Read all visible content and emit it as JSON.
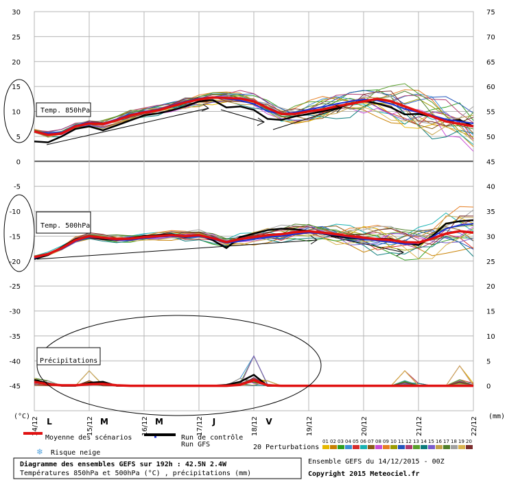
{
  "chart_data": {
    "type": "line",
    "x_labels": [
      "14/12",
      "15/12",
      "16/12",
      "17/12",
      "18/12",
      "19/12",
      "20/12",
      "21/12",
      "22/12"
    ],
    "day_letters": [
      "L",
      "M",
      "M",
      "J",
      "V"
    ],
    "left_axis": {
      "unit": "(°C)",
      "range": [
        -50,
        30
      ],
      "ticks": [
        30,
        25,
        20,
        15,
        10,
        5,
        0,
        -5,
        -10,
        -15,
        -20,
        -25,
        -30,
        -35,
        -40,
        -45
      ]
    },
    "right_axis": {
      "unit": "(mm)",
      "ticks": [
        75,
        70,
        65,
        60,
        55,
        50,
        45,
        40,
        35,
        30,
        25,
        20,
        15,
        10,
        5,
        0
      ]
    },
    "panels": {
      "t850": {
        "label": "Temp. 850hPa",
        "x_days": [
          0,
          0.25,
          0.5,
          0.75,
          1,
          1.25,
          1.5,
          1.75,
          2,
          2.25,
          2.5,
          2.75,
          3,
          3.25,
          3.5,
          3.75,
          4,
          4.25,
          4.5,
          4.75,
          5,
          5.25,
          5.5,
          5.75,
          6,
          6.25,
          6.5,
          6.75,
          7,
          7.25,
          7.5,
          7.75,
          8
        ],
        "mean": [
          6,
          5.3,
          5.6,
          7,
          7.6,
          7.5,
          8.2,
          9.2,
          9.8,
          10.2,
          11,
          11.8,
          12.4,
          12.8,
          12.7,
          12.6,
          12,
          10.7,
          9.5,
          9.5,
          10,
          10.4,
          11,
          11.5,
          12,
          12.5,
          12,
          11,
          10,
          9,
          8,
          7.5,
          7
        ],
        "gfs": [
          4,
          3.8,
          5,
          6.5,
          7,
          6.2,
          7.2,
          8.2,
          9.2,
          9.6,
          10.2,
          11,
          12,
          12.3,
          10.8,
          11,
          10.3,
          8.5,
          8.3,
          9,
          9.5,
          10,
          10.6,
          11.5,
          12.2,
          11.6,
          10.8,
          9.4,
          9.5,
          9,
          8,
          8.3,
          7
        ],
        "control": [
          6,
          5.6,
          5.8,
          7.2,
          7.8,
          7.6,
          8.4,
          9.4,
          10,
          10.4,
          11.2,
          12,
          12.6,
          12.9,
          12.5,
          12.2,
          11.5,
          10,
          9.6,
          9.8,
          10.4,
          10.9,
          11.5,
          12,
          12.4,
          12.2,
          11.5,
          10.5,
          9.8,
          9.2,
          8.4,
          8,
          7.6
        ],
        "spread": [
          0.4,
          0.6,
          0.8,
          0.8,
          0.8,
          0.9,
          0.9,
          1,
          1,
          1.1,
          1.1,
          1.2,
          1.2,
          1.3,
          1.3,
          1.4,
          1.5,
          1.6,
          1.6,
          1.8,
          2,
          2.2,
          2.5,
          2.8,
          3,
          3.3,
          3.6,
          3.9,
          4.2,
          4.5,
          4.8,
          5,
          5.2
        ]
      },
      "t500": {
        "label": "Temp. 500hPa",
        "x_days": [
          0,
          0.25,
          0.5,
          0.75,
          1,
          1.25,
          1.5,
          1.75,
          2,
          2.25,
          2.5,
          2.75,
          3,
          3.25,
          3.5,
          3.75,
          4,
          4.25,
          4.5,
          4.75,
          5,
          5.25,
          5.5,
          5.75,
          6,
          6.25,
          6.5,
          6.75,
          7,
          7.25,
          7.5,
          7.75,
          8
        ],
        "mean": [
          -19.2,
          -18.6,
          -17.4,
          -15.8,
          -15,
          -15.3,
          -15.6,
          -15.5,
          -15.2,
          -15,
          -14.8,
          -15,
          -14.8,
          -15.4,
          -16.2,
          -15.6,
          -15.2,
          -14.8,
          -14.6,
          -14.2,
          -14,
          -14.3,
          -14.6,
          -15,
          -15.3,
          -15.6,
          -15.8,
          -16.2,
          -16.3,
          -15.5,
          -14.5,
          -14,
          -14.3
        ],
        "gfs": [
          -19.6,
          -18.8,
          -17.2,
          -15.6,
          -15.2,
          -15.6,
          -15.8,
          -15.4,
          -15,
          -14.8,
          -14.6,
          -15.2,
          -14.8,
          -15.8,
          -17.4,
          -15.2,
          -14.5,
          -13.8,
          -13.5,
          -13.6,
          -14,
          -14.5,
          -15,
          -15.4,
          -15.6,
          -15.5,
          -15.6,
          -16.4,
          -16.8,
          -15,
          -12.5,
          -12,
          -11.8
        ],
        "control": [
          -19.4,
          -18.6,
          -17.6,
          -16,
          -15.2,
          -15.4,
          -15.8,
          -15.8,
          -15.4,
          -15.2,
          -15,
          -15.2,
          -15,
          -15.6,
          -16.4,
          -16,
          -15.6,
          -15.2,
          -15,
          -14.6,
          -14.3,
          -14.5,
          -14.8,
          -15.2,
          -15.6,
          -15.9,
          -16.2,
          -16.6,
          -16.4,
          -15.2,
          -13.5,
          -12.8,
          -12.5
        ],
        "spread": [
          0.3,
          0.4,
          0.5,
          0.6,
          0.7,
          0.7,
          0.8,
          0.8,
          0.9,
          0.9,
          1,
          1,
          1,
          1.1,
          1.2,
          1.3,
          1.4,
          1.5,
          1.6,
          1.7,
          1.8,
          2,
          2.2,
          2.4,
          2.6,
          2.9,
          3.2,
          3.5,
          3.8,
          4,
          4.2,
          4.4,
          4.6
        ]
      },
      "precip": {
        "label": "Précipitations",
        "x_days": [
          0,
          0.25,
          0.5,
          0.75,
          1,
          1.25,
          1.5,
          1.75,
          2,
          2.25,
          2.5,
          2.75,
          3,
          3.25,
          3.5,
          3.75,
          4,
          4.25,
          4.5,
          4.75,
          5,
          5.25,
          5.5,
          5.75,
          6,
          6.25,
          6.5,
          6.75,
          7,
          7.25,
          7.5,
          7.75,
          8
        ],
        "mean_mm": [
          0.8,
          0.3,
          0.1,
          0.1,
          0.3,
          0.4,
          0.1,
          0,
          0,
          0,
          0,
          0,
          0,
          0,
          0,
          0.2,
          1.1,
          0.1,
          0,
          0,
          0,
          0,
          0,
          0,
          0,
          0,
          0,
          0,
          0,
          0,
          0,
          0,
          0
        ],
        "gfs_mm": [
          1.2,
          0.5,
          0,
          0,
          0.6,
          0.8,
          0,
          0,
          0,
          0,
          0,
          0,
          0,
          0,
          0.2,
          0.8,
          2.2,
          0,
          0,
          0,
          0,
          0,
          0,
          0,
          0,
          0,
          0,
          0,
          0,
          0,
          0,
          0,
          0
        ],
        "member_peak_mm": [
          1.5,
          1,
          0,
          0,
          3,
          0.5,
          0,
          0,
          0,
          0,
          0,
          0,
          0,
          0,
          0,
          1.5,
          6,
          1,
          0,
          0,
          0,
          0,
          0,
          0,
          0,
          0,
          0,
          3,
          0.5,
          0,
          0,
          4,
          0.5
        ]
      }
    },
    "member_colors": [
      "#e6b800",
      "#c98000",
      "#2d9e1e",
      "#3b8fd6",
      "#d62c2c",
      "#17b1b1",
      "#8a5a17",
      "#c94dd6",
      "#e67e22",
      "#9b9b00",
      "#2255bb",
      "#b03a6f",
      "#5aa02c",
      "#0c7c7c",
      "#7a5ccc",
      "#c2a24a",
      "#4f7f2a",
      "#a0a0a0",
      "#d9b34e",
      "#7c2d2d"
    ]
  },
  "annotations": {
    "legend_ensemble_mean": "Moyenne des scénarios",
    "legend_control": "Run de contrôle",
    "legend_gfs": "Run GFS",
    "legend_snow": "Risque neige",
    "perturbations_label": "20 Perturbations",
    "perturbation_numbers": [
      "01",
      "02",
      "03",
      "04",
      "05",
      "06",
      "07",
      "08",
      "09",
      "10",
      "11",
      "12",
      "13",
      "14",
      "15",
      "16",
      "17",
      "18",
      "19",
      "20"
    ],
    "perturbation_colors": [
      "#e6b800",
      "#c98000",
      "#2d9e1e",
      "#3b8fd6",
      "#d62c2c",
      "#17b1b1",
      "#8a5a17",
      "#c94dd6",
      "#e67e22",
      "#9b9b00",
      "#2255bb",
      "#b03a6f",
      "#5aa02c",
      "#0c7c7c",
      "#7a5ccc",
      "#c2a24a",
      "#4f7f2a",
      "#a0a0a0",
      "#d9b34e",
      "#7c2d2d"
    ],
    "title_line1": "Diagramme des ensembles GEFS sur 192h : 42.5N 2.4W",
    "title_line2": "Températures 850hPa et 500hPa (°C) , précipitations (mm)",
    "run_info": "Ensemble GEFS du 14/12/2015 - 00Z",
    "copyright": "Copyright 2015 Meteociel.fr"
  },
  "colors": {
    "mean": "#e01010",
    "gfs": "#000000",
    "control": "#1a2fd6",
    "grid": "#b4b4b4",
    "zero_line": "#555555",
    "snow_icon": "#5aa7e0"
  }
}
